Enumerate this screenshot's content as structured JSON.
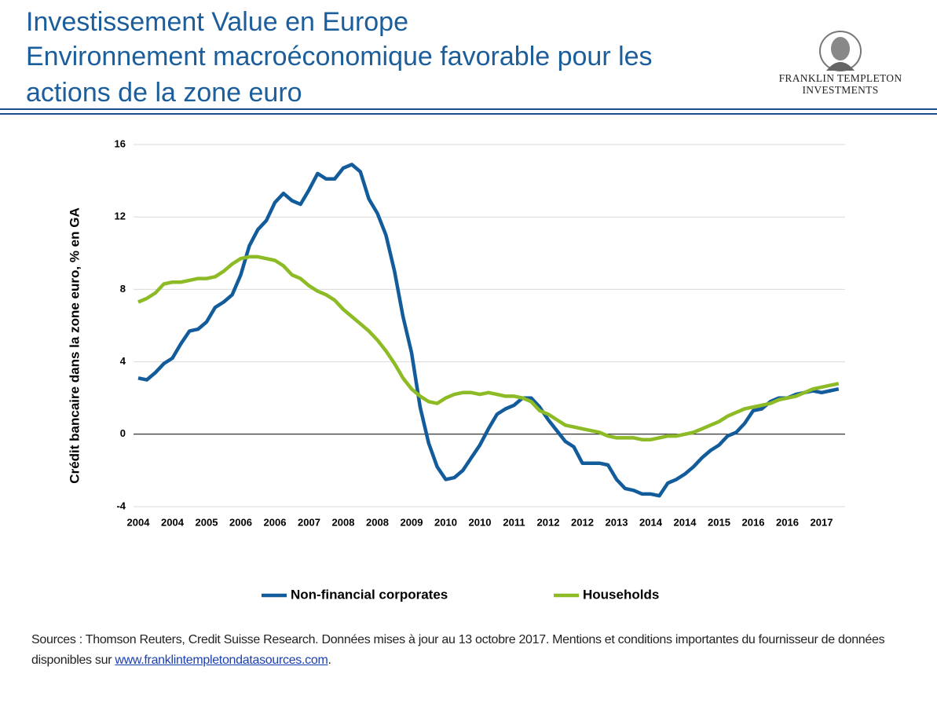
{
  "header": {
    "title_lines": [
      "Investissement Value en Europe",
      "Environnement macroéconomique favorable pour les",
      "actions de la zone euro"
    ],
    "logo_lines": [
      "FRANKLIN TEMPLETON",
      "INVESTMENTS"
    ]
  },
  "chart_data": {
    "type": "line",
    "y_label": "Crédit bancaire dans la zone euro, % en GA",
    "categories": [
      "2004",
      null,
      null,
      null,
      "2004",
      null,
      null,
      null,
      "2005",
      null,
      null,
      null,
      "2006",
      null,
      null,
      null,
      "2006",
      null,
      null,
      null,
      "2007",
      null,
      null,
      null,
      "2008",
      null,
      null,
      null,
      "2008",
      null,
      null,
      null,
      "2009",
      null,
      null,
      null,
      "2010",
      null,
      null,
      null,
      "2010",
      null,
      null,
      null,
      "2011",
      null,
      null,
      null,
      "2012",
      null,
      null,
      null,
      "2012",
      null,
      null,
      null,
      "2013",
      null,
      null,
      null,
      "2014",
      null,
      null,
      null,
      "2014",
      null,
      null,
      null,
      "2015",
      null,
      null,
      null,
      "2016",
      null,
      null,
      null,
      "2016",
      null,
      null,
      null,
      "2017",
      null,
      null
    ],
    "series": [
      {
        "name": "Non-financial corporates",
        "color": "#135c9c",
        "values": [
          3.1,
          3.0,
          3.4,
          3.9,
          4.2,
          5.0,
          5.7,
          5.8,
          6.2,
          7.0,
          7.3,
          7.7,
          8.8,
          10.4,
          11.3,
          11.8,
          12.8,
          13.3,
          12.9,
          12.7,
          13.5,
          14.4,
          14.1,
          14.1,
          14.7,
          14.9,
          14.5,
          13.0,
          12.2,
          11.0,
          9.0,
          6.5,
          4.5,
          1.5,
          -0.5,
          -1.8,
          -2.5,
          -2.4,
          -2.0,
          -1.3,
          -0.6,
          0.3,
          1.1,
          1.4,
          1.6,
          2.0,
          2.0,
          1.5,
          0.8,
          0.2,
          -0.4,
          -0.7,
          -1.6,
          -1.6,
          -1.6,
          -1.7,
          -2.5,
          -3.0,
          -3.1,
          -3.3,
          -3.3,
          -3.4,
          -2.7,
          -2.5,
          -2.2,
          -1.8,
          -1.3,
          -0.9,
          -0.6,
          -0.1,
          0.1,
          0.6,
          1.3,
          1.4,
          1.8,
          2.0,
          2.0,
          2.2,
          2.3,
          2.4,
          2.3,
          2.4,
          2.5
        ]
      },
      {
        "name": "Households",
        "color": "#8dbb25",
        "values": [
          7.3,
          7.5,
          7.8,
          8.3,
          8.4,
          8.4,
          8.5,
          8.6,
          8.6,
          8.7,
          9.0,
          9.4,
          9.7,
          9.8,
          9.8,
          9.7,
          9.6,
          9.3,
          8.8,
          8.6,
          8.2,
          7.9,
          7.7,
          7.4,
          6.9,
          6.5,
          6.1,
          5.7,
          5.2,
          4.6,
          3.9,
          3.1,
          2.5,
          2.1,
          1.8,
          1.7,
          2.0,
          2.2,
          2.3,
          2.3,
          2.2,
          2.3,
          2.2,
          2.1,
          2.1,
          2.0,
          1.8,
          1.3,
          1.1,
          0.8,
          0.5,
          0.4,
          0.3,
          0.2,
          0.1,
          -0.1,
          -0.2,
          -0.2,
          -0.2,
          -0.3,
          -0.3,
          -0.2,
          -0.1,
          -0.1,
          0.0,
          0.1,
          0.3,
          0.5,
          0.7,
          1.0,
          1.2,
          1.4,
          1.5,
          1.6,
          1.7,
          1.9,
          2.0,
          2.1,
          2.3,
          2.5,
          2.6,
          2.7,
          2.8
        ]
      }
    ],
    "ylim": [
      -4,
      16
    ],
    "yticks": [
      -4,
      0,
      4,
      8,
      12,
      16
    ],
    "grid": true,
    "legend": "bottom"
  },
  "footer": {
    "source": "Sources : Thomson Reuters, Credit Suisse Research. Données mises à jour au 13 octobre 2017. Mentions et conditions importantes du fournisseur de données disponibles sur ",
    "link": "www.franklintempletondatasources.com",
    "end": "."
  }
}
